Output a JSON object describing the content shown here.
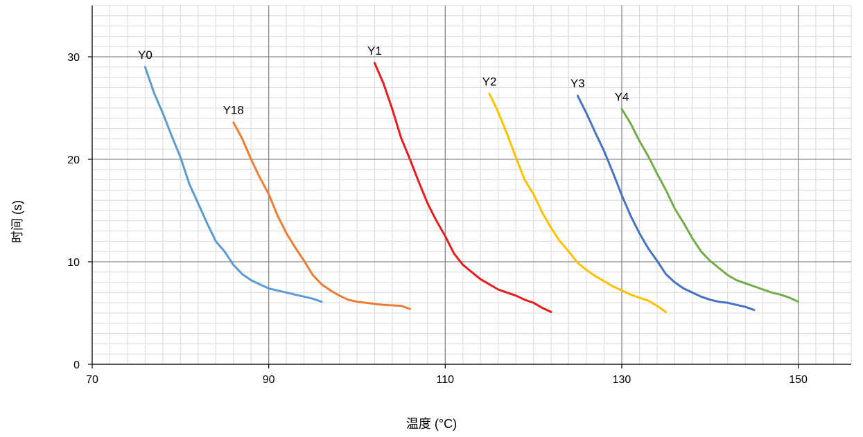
{
  "chart_data": {
    "type": "line",
    "title": "",
    "xlabel": "温度 (°C)",
    "ylabel": "时间 (s)",
    "xlim": [
      70,
      156
    ],
    "ylim": [
      0,
      35
    ],
    "xticks": [
      70,
      90,
      110,
      130,
      150
    ],
    "yticks": [
      0,
      10,
      20,
      30
    ],
    "x_minor_step": 2,
    "y_minor_step": 1,
    "grid": true,
    "legend": "none",
    "series": [
      {
        "name": "Y0",
        "color": "#5B9BD5",
        "x": [
          76,
          77,
          78,
          79,
          80,
          81,
          82,
          83,
          84,
          85,
          86,
          87,
          88,
          89,
          90,
          91,
          92,
          93,
          94,
          95,
          96
        ],
        "y": [
          29.0,
          26.5,
          24.5,
          22.3,
          20.2,
          17.6,
          15.7,
          13.8,
          12.0,
          11.0,
          9.7,
          8.8,
          8.2,
          7.8,
          7.4,
          7.2,
          7.0,
          6.8,
          6.6,
          6.4,
          6.1
        ]
      },
      {
        "name": "Y18",
        "color": "#ED7D31",
        "x": [
          86,
          87,
          88,
          89,
          90,
          91,
          92,
          93,
          94,
          95,
          96,
          97,
          98,
          99,
          100,
          101,
          102,
          103,
          104,
          105,
          106
        ],
        "y": [
          23.6,
          22.0,
          20.0,
          18.2,
          16.6,
          14.5,
          12.8,
          11.4,
          10.1,
          8.7,
          7.8,
          7.2,
          6.7,
          6.3,
          6.1,
          6.0,
          5.9,
          5.8,
          5.75,
          5.7,
          5.4
        ]
      },
      {
        "name": "Y1",
        "color": "#E81C1C",
        "x": [
          102,
          103,
          104,
          105,
          106,
          107,
          108,
          109,
          110,
          111,
          112,
          113,
          114,
          115,
          116,
          117,
          118,
          119,
          120,
          121,
          122
        ],
        "y": [
          29.4,
          27.4,
          24.9,
          22.1,
          20.0,
          17.8,
          15.7,
          14.0,
          12.5,
          10.8,
          9.7,
          9.0,
          8.3,
          7.8,
          7.3,
          7.0,
          6.7,
          6.3,
          6.0,
          5.5,
          5.1
        ]
      },
      {
        "name": "Y2",
        "color": "#FFC000",
        "x": [
          115,
          116,
          117,
          118,
          119,
          120,
          121,
          122,
          123,
          124,
          125,
          126,
          127,
          128,
          129,
          130,
          131,
          132,
          133,
          134,
          135
        ],
        "y": [
          26.4,
          24.6,
          22.5,
          20.2,
          18.0,
          16.6,
          14.8,
          13.3,
          12.0,
          11.0,
          9.9,
          9.2,
          8.6,
          8.1,
          7.6,
          7.2,
          6.8,
          6.5,
          6.2,
          5.7,
          5.1
        ]
      },
      {
        "name": "Y3",
        "color": "#4472C4",
        "x": [
          125,
          126,
          127,
          128,
          129,
          130,
          131,
          132,
          133,
          134,
          135,
          136,
          137,
          138,
          139,
          140,
          141,
          142,
          143,
          144,
          145
        ],
        "y": [
          26.2,
          24.5,
          22.6,
          20.8,
          18.7,
          16.5,
          14.5,
          12.8,
          11.3,
          10.1,
          8.8,
          8.0,
          7.4,
          7.0,
          6.6,
          6.3,
          6.1,
          6.0,
          5.8,
          5.6,
          5.3
        ]
      },
      {
        "name": "Y4",
        "color": "#70AD47",
        "x": [
          130,
          131,
          132,
          133,
          134,
          135,
          136,
          137,
          138,
          139,
          140,
          141,
          142,
          143,
          144,
          145,
          146,
          147,
          148,
          149,
          150
        ],
        "y": [
          24.9,
          23.5,
          21.8,
          20.3,
          18.6,
          17.0,
          15.2,
          13.8,
          12.3,
          11.0,
          10.1,
          9.4,
          8.7,
          8.2,
          7.9,
          7.6,
          7.3,
          7.0,
          6.8,
          6.5,
          6.1
        ]
      }
    ]
  }
}
